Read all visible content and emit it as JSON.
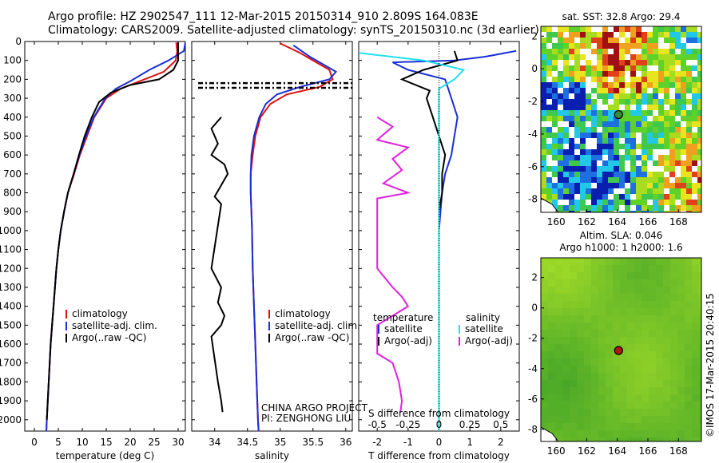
{
  "header": {
    "title_line1": "Argo profile: HZ 2902547_111 12-Mar-2015 20150314_910 2.809S 164.083E",
    "title_line2": "Climatology: CARS2009. Satellite-adjusted climatology: synTS_20150310.nc (3d earlier)"
  },
  "colors": {
    "climatology": "#e01010",
    "satellite": "#1a2fd6",
    "argo": "#000000",
    "sat_salinity": "#22e0f0",
    "argo_salinity": "#e020e0"
  },
  "chart_data": [
    {
      "id": "temperature",
      "type": "line",
      "xlabel": "temperature (deg C)",
      "ylabel": "",
      "xlim": [
        -2,
        31.5
      ],
      "ylim": [
        2060,
        0
      ],
      "xticks": [
        0,
        5,
        10,
        15,
        20,
        25,
        30
      ],
      "yticks": [
        0,
        100,
        200,
        300,
        400,
        500,
        600,
        700,
        800,
        900,
        1000,
        1100,
        1200,
        1300,
        1400,
        1500,
        1600,
        1700,
        1800,
        1900,
        2000
      ],
      "legend": [
        "climatology",
        "satellite-adj. clim.",
        "Argo(..raw -QC)"
      ],
      "series": [
        {
          "name": "climatology",
          "color": "#e01010",
          "points": [
            [
              29.6,
              5
            ],
            [
              29.8,
              50
            ],
            [
              29.5,
              100
            ],
            [
              27,
              160
            ],
            [
              22,
              210
            ],
            [
              18,
              250
            ],
            [
              15,
              300
            ],
            [
              12.5,
              400
            ],
            [
              11,
              500
            ],
            [
              9.5,
              600
            ],
            [
              8.3,
              700
            ],
            [
              7,
              800
            ],
            [
              6.2,
              900
            ],
            [
              5.5,
              1000
            ],
            [
              5,
              1100
            ],
            [
              4.6,
              1200
            ],
            [
              4.3,
              1300
            ],
            [
              4,
              1400
            ],
            [
              3.7,
              1500
            ],
            [
              3.4,
              1600
            ],
            [
              3.2,
              1700
            ],
            [
              3,
              1800
            ],
            [
              2.8,
              1900
            ],
            [
              2.6,
              2000
            ],
            [
              2.5,
              2060
            ]
          ]
        },
        {
          "name": "satellite-adj. clim.",
          "color": "#1a2fd6",
          "points": [
            [
              31.5,
              5
            ],
            [
              31.2,
              50
            ],
            [
              28,
              100
            ],
            [
              24,
              150
            ],
            [
              20,
              210
            ],
            [
              17,
              250
            ],
            [
              14.8,
              300
            ],
            [
              12.4,
              400
            ],
            [
              10.8,
              500
            ],
            [
              9.4,
              600
            ],
            [
              8.2,
              700
            ],
            [
              7,
              800
            ],
            [
              6.2,
              900
            ],
            [
              5.5,
              1000
            ],
            [
              5,
              1100
            ],
            [
              4.6,
              1200
            ],
            [
              4.3,
              1300
            ],
            [
              4,
              1400
            ],
            [
              3.7,
              1500
            ],
            [
              3.4,
              1600
            ],
            [
              3.2,
              1700
            ],
            [
              3,
              1800
            ],
            [
              2.8,
              1900
            ],
            [
              2.6,
              2000
            ],
            [
              2.5,
              2060
            ]
          ]
        },
        {
          "name": "Argo(..raw -QC)",
          "color": "#000000",
          "points": [
            [
              30,
              5
            ],
            [
              30,
              100
            ],
            [
              29,
              150
            ],
            [
              26,
              200
            ],
            [
              20,
              230
            ],
            [
              16,
              270
            ],
            [
              13.5,
              320
            ],
            [
              12,
              400
            ],
            [
              10.5,
              500
            ],
            [
              9.3,
              600
            ],
            [
              8.2,
              700
            ],
            [
              7,
              800
            ],
            [
              6.2,
              900
            ],
            [
              5.5,
              1000
            ],
            [
              5,
              1100
            ],
            [
              4.6,
              1200
            ],
            [
              4.3,
              1300
            ],
            [
              4,
              1400
            ],
            [
              3.7,
              1500
            ],
            [
              3.4,
              1600
            ],
            [
              3.2,
              1700
            ],
            [
              3,
              1800
            ],
            [
              2.8,
              1900
            ],
            [
              2.6,
              2000
            ]
          ]
        }
      ]
    },
    {
      "id": "salinity",
      "type": "line",
      "xlabel": "salinity",
      "xlim": [
        33.65,
        36.1
      ],
      "ylim": [
        2060,
        0
      ],
      "xticks": [
        34,
        34.5,
        35,
        35.5,
        36
      ],
      "legend": [
        "climatology",
        "satellite-adj. clim.",
        "Argo(..raw -QC)"
      ],
      "series": [
        {
          "name": "climatology",
          "color": "#e01010",
          "points": [
            [
              35.0,
              10
            ],
            [
              35.3,
              60
            ],
            [
              35.5,
              100
            ],
            [
              35.75,
              150
            ],
            [
              35.8,
              200
            ],
            [
              35.6,
              240
            ],
            [
              35.1,
              280
            ],
            [
              34.85,
              330
            ],
            [
              34.7,
              400
            ],
            [
              34.62,
              500
            ],
            [
              34.58,
              600
            ],
            [
              34.55,
              700
            ],
            [
              34.55,
              800
            ],
            [
              34.56,
              900
            ],
            [
              34.57,
              1000
            ],
            [
              34.58,
              1200
            ],
            [
              34.6,
              1400
            ],
            [
              34.62,
              1600
            ],
            [
              34.64,
              1800
            ],
            [
              34.66,
              2000
            ],
            [
              34.67,
              2060
            ]
          ]
        },
        {
          "name": "satellite-adj. clim.",
          "color": "#1a2fd6",
          "points": [
            [
              35.2,
              20
            ],
            [
              35.45,
              80
            ],
            [
              35.65,
              120
            ],
            [
              35.85,
              160
            ],
            [
              35.75,
              200
            ],
            [
              35.3,
              240
            ],
            [
              34.95,
              280
            ],
            [
              34.78,
              330
            ],
            [
              34.68,
              400
            ],
            [
              34.6,
              500
            ],
            [
              34.56,
              600
            ],
            [
              34.55,
              700
            ],
            [
              34.55,
              800
            ],
            [
              34.56,
              900
            ],
            [
              34.57,
              1000
            ],
            [
              34.58,
              1200
            ],
            [
              34.6,
              1400
            ],
            [
              34.62,
              1600
            ],
            [
              34.64,
              1800
            ],
            [
              34.66,
              2000
            ],
            [
              34.67,
              2060
            ]
          ]
        },
        {
          "name": "Argo(..raw -QC)",
          "color": "#000000",
          "points": [
            [
              34.1,
              400
            ],
            [
              33.95,
              460
            ],
            [
              34.05,
              540
            ],
            [
              33.95,
              600
            ],
            [
              34.15,
              650
            ],
            [
              34.2,
              700
            ],
            [
              34.1,
              760
            ],
            [
              34.0,
              820
            ],
            [
              34.1,
              860
            ],
            [
              33.95,
              1200
            ],
            [
              34.1,
              1300
            ],
            [
              34.05,
              1380
            ],
            [
              34.15,
              1450
            ],
            [
              34.1,
              1500
            ],
            [
              33.95,
              1560
            ],
            [
              34.0,
              1680
            ],
            [
              34.05,
              1800
            ],
            [
              34.1,
              1900
            ],
            [
              34.12,
              1960
            ]
          ]
        }
      ]
    },
    {
      "id": "differences",
      "type": "line",
      "xlabel": "T difference from climatology",
      "xlabel2": "S difference from climatology",
      "xlim": [
        -2.6,
        2.6
      ],
      "ylim": [
        2060,
        0
      ],
      "xticks": [
        -2,
        -1,
        0,
        1,
        2
      ],
      "xticks_s": [
        "-0.5",
        "-0.25",
        "0",
        "0.25",
        "0.5"
      ],
      "legend_headers": [
        "temperature",
        "salinity"
      ],
      "legend": [
        "satellite",
        "Argo(-adj)",
        "satellite",
        "Argo(-adj)"
      ],
      "series": [
        {
          "name": "T satellite",
          "color": "#1a2fd6",
          "points": [
            [
              2.5,
              50
            ],
            [
              1.5,
              80
            ],
            [
              0.5,
              100
            ],
            [
              -1.5,
              110
            ],
            [
              -1.0,
              150
            ],
            [
              0.2,
              200
            ],
            [
              0.4,
              300
            ],
            [
              0.6,
              400
            ],
            [
              0.5,
              500
            ],
            [
              0.4,
              600
            ],
            [
              0.2,
              700
            ],
            [
              0.1,
              800
            ],
            [
              0.05,
              900
            ],
            [
              0,
              1000
            ],
            [
              0,
              2060
            ]
          ]
        },
        {
          "name": "T Argo(-adj)",
          "color": "#000000",
          "points": [
            [
              0.5,
              50
            ],
            [
              0.6,
              100
            ],
            [
              -0.5,
              150
            ],
            [
              -1.2,
              200
            ],
            [
              -0.3,
              260
            ],
            [
              -0.4,
              300
            ],
            [
              -0.2,
              400
            ],
            [
              0,
              500
            ],
            [
              0.2,
              600
            ],
            [
              0.1,
              700
            ],
            [
              0.1,
              800
            ],
            [
              0,
              900
            ],
            [
              0,
              2000
            ]
          ]
        },
        {
          "name": "S satellite",
          "color": "#22e0f0",
          "points": [
            [
              -2.6,
              60
            ],
            [
              -0.5,
              100
            ],
            [
              0.8,
              150
            ],
            [
              0.5,
              200
            ],
            [
              0,
              250
            ],
            [
              0,
              2060
            ]
          ]
        },
        {
          "name": "S Argo(-adj)",
          "color": "#e020e0",
          "points": [
            [
              -2,
              400
            ],
            [
              -1.5,
              450
            ],
            [
              -2,
              520
            ],
            [
              -1,
              560
            ],
            [
              -1.5,
              620
            ],
            [
              -1.2,
              680
            ],
            [
              -1.8,
              750
            ],
            [
              -1.0,
              800
            ],
            [
              -2,
              830
            ],
            [
              -2,
              1200
            ],
            [
              -1.5,
              1300
            ],
            [
              -1.2,
              1350
            ],
            [
              -1.0,
              1400
            ],
            [
              -2,
              1500
            ],
            [
              -2,
              1650
            ],
            [
              -1.5,
              1700
            ],
            [
              -1.3,
              1800
            ],
            [
              -1.2,
              1900
            ],
            [
              -1.25,
              1960
            ]
          ]
        }
      ]
    },
    {
      "id": "sst_map",
      "type": "heatmap",
      "title": "sat. SST: 32.8  Argo: 29.4",
      "xlim": [
        159,
        169.5
      ],
      "ylim": [
        -8.8,
        2.6
      ],
      "xticks": [
        160,
        162,
        164,
        166,
        168
      ],
      "yticks": [
        2,
        0,
        -2,
        -4,
        -6,
        -8
      ],
      "marker": [
        164.083,
        -2.809
      ]
    },
    {
      "id": "sla_map",
      "type": "heatmap",
      "title": "Altim. SLA: 0.046",
      "subtitle": "Argo h1000: 1  h2000: 1.6",
      "xlim": [
        159,
        169.5
      ],
      "ylim": [
        -8.8,
        3.3
      ],
      "xticks": [
        160,
        162,
        164,
        166,
        168
      ],
      "yticks": [
        2,
        0,
        -2,
        -4,
        -6,
        -8
      ],
      "marker": [
        164.083,
        -2.809
      ]
    }
  ],
  "annotations": {
    "project_line1": "CHINA ARGO PROJECT",
    "project_line2": "PI: ZENGHONG LIU",
    "timestamp": "©IMOS 17-Mar-2015 20:40:15"
  }
}
